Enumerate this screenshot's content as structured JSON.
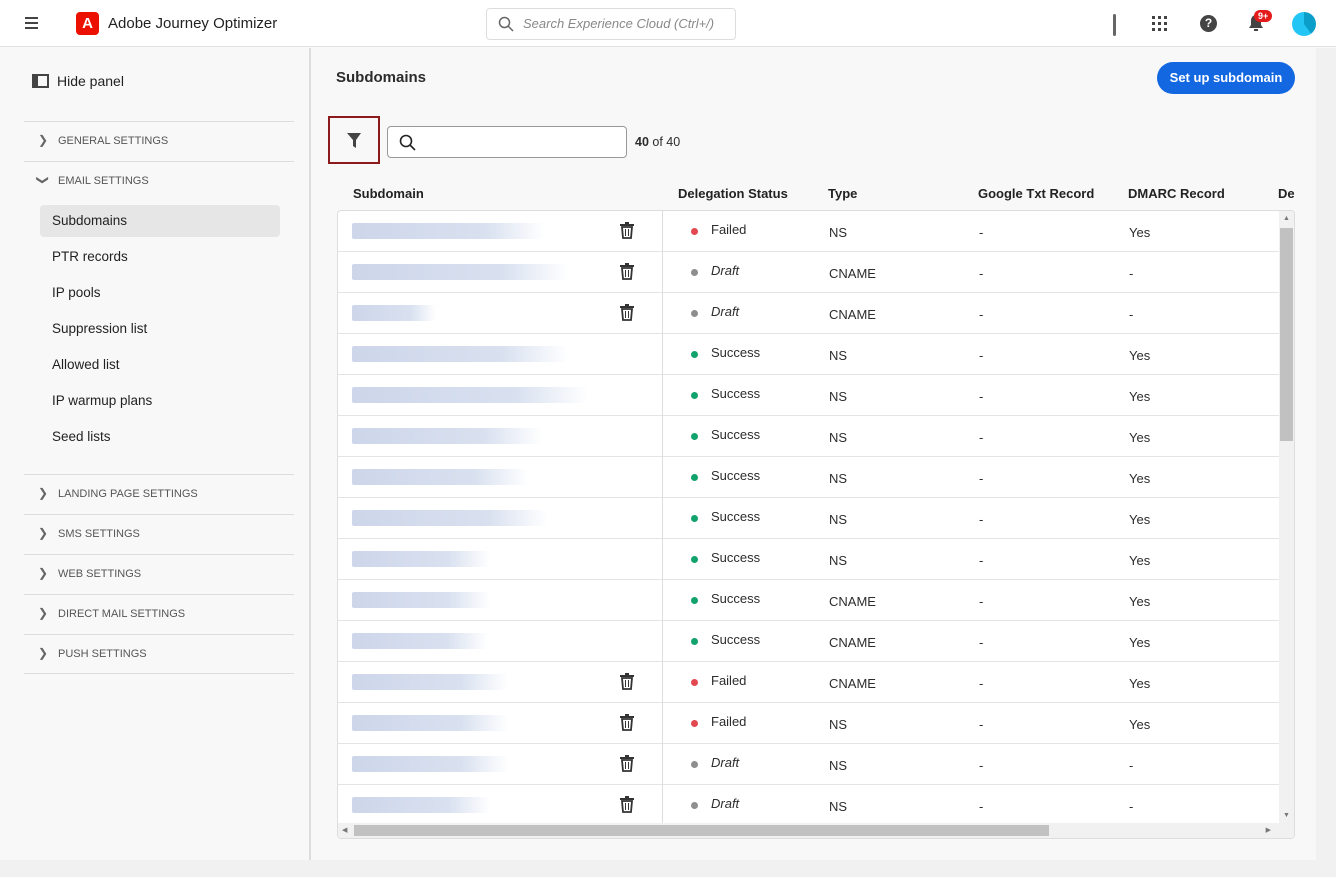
{
  "header": {
    "app_name": "Adobe Journey Optimizer",
    "logo_letter": "A",
    "search_placeholder": "Search Experience Cloud (Ctrl+/)",
    "notification_badge": "9+"
  },
  "sidebar": {
    "hide_panel": "Hide panel",
    "sections": [
      {
        "label": "GENERAL SETTINGS",
        "expanded": false
      },
      {
        "label": "EMAIL SETTINGS",
        "expanded": true
      }
    ],
    "email_items": [
      {
        "label": "Subdomains",
        "active": true
      },
      {
        "label": "PTR records"
      },
      {
        "label": "IP pools"
      },
      {
        "label": "Suppression list"
      },
      {
        "label": "Allowed list"
      },
      {
        "label": "IP warmup plans"
      },
      {
        "label": "Seed lists"
      }
    ],
    "other_sections": [
      {
        "label": "LANDING PAGE SETTINGS"
      },
      {
        "label": "SMS SETTINGS"
      },
      {
        "label": "WEB SETTINGS"
      },
      {
        "label": "DIRECT MAIL SETTINGS"
      },
      {
        "label": "PUSH SETTINGS"
      }
    ]
  },
  "main": {
    "title": "Subdomains",
    "setup_button": "Set up subdomain",
    "count_shown": "40",
    "count_of": "of 40",
    "columns": [
      "Subdomain",
      "Delegation Status",
      "Type",
      "Google Txt Record",
      "DMARC Record",
      "De"
    ],
    "status_colors": {
      "Failed": "#e34850",
      "Draft": "#8e8e8e",
      "Success": "#12a26c"
    },
    "rows": [
      {
        "status": "Failed",
        "type": "NS",
        "google": "-",
        "dmarc": "Yes",
        "deletable": true
      },
      {
        "status": "Draft",
        "type": "CNAME",
        "google": "-",
        "dmarc": "-",
        "deletable": true
      },
      {
        "status": "Draft",
        "type": "CNAME",
        "google": "-",
        "dmarc": "-",
        "deletable": true
      },
      {
        "status": "Success",
        "type": "NS",
        "google": "-",
        "dmarc": "Yes",
        "deletable": false
      },
      {
        "status": "Success",
        "type": "NS",
        "google": "-",
        "dmarc": "Yes",
        "deletable": false
      },
      {
        "status": "Success",
        "type": "NS",
        "google": "-",
        "dmarc": "Yes",
        "deletable": false
      },
      {
        "status": "Success",
        "type": "NS",
        "google": "-",
        "dmarc": "Yes",
        "deletable": false
      },
      {
        "status": "Success",
        "type": "NS",
        "google": "-",
        "dmarc": "Yes",
        "deletable": false
      },
      {
        "status": "Success",
        "type": "NS",
        "google": "-",
        "dmarc": "Yes",
        "deletable": false
      },
      {
        "status": "Success",
        "type": "CNAME",
        "google": "-",
        "dmarc": "Yes",
        "deletable": false
      },
      {
        "status": "Success",
        "type": "CNAME",
        "google": "-",
        "dmarc": "Yes",
        "deletable": false
      },
      {
        "status": "Failed",
        "type": "CNAME",
        "google": "-",
        "dmarc": "Yes",
        "deletable": true
      },
      {
        "status": "Failed",
        "type": "NS",
        "google": "-",
        "dmarc": "Yes",
        "deletable": true
      },
      {
        "status": "Draft",
        "type": "NS",
        "google": "-",
        "dmarc": "-",
        "deletable": true
      },
      {
        "status": "Draft",
        "type": "NS",
        "google": "-",
        "dmarc": "-",
        "deletable": true
      }
    ]
  }
}
